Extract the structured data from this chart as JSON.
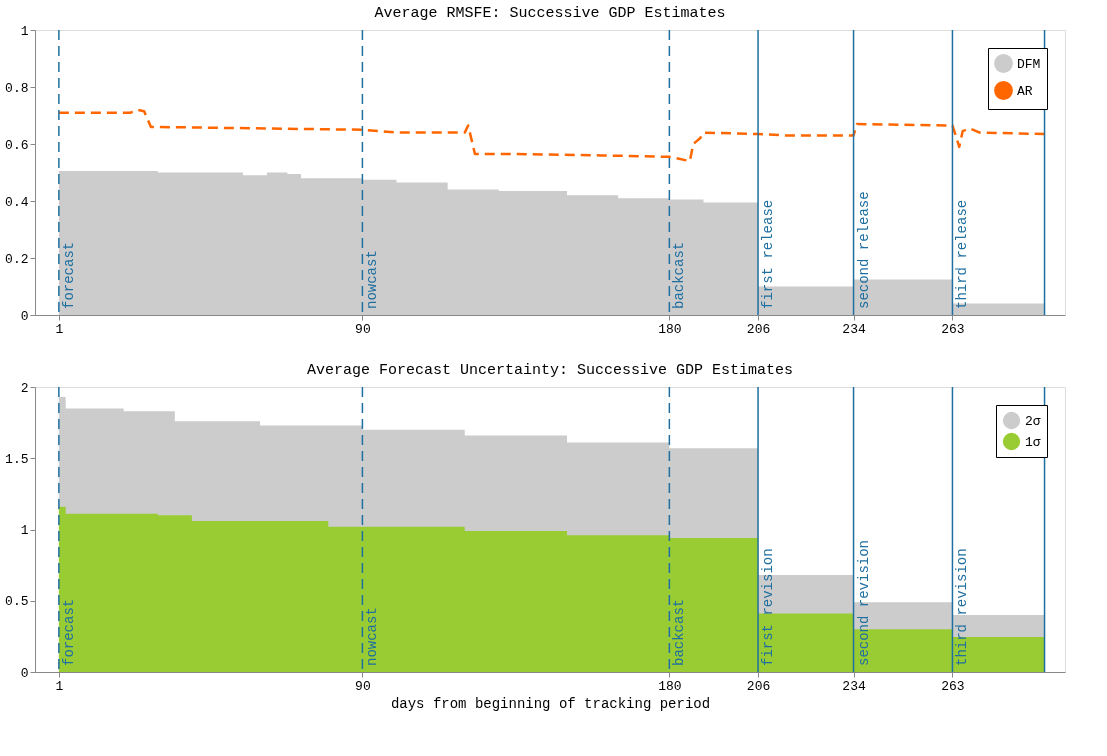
{
  "chart_data": [
    {
      "type": "area",
      "title": "Average RMSFE: Successive GDP Estimates",
      "xlim": [
        -6,
        296
      ],
      "xticks": [
        1,
        90,
        180,
        206,
        234,
        263
      ],
      "ylim": [
        0,
        1
      ],
      "yticks": [
        0,
        0.2,
        0.4,
        0.6,
        0.8,
        1
      ],
      "grid": false,
      "legend": "top right",
      "series": [
        {
          "name": "DFM",
          "color": "#cccccc",
          "x": [
            1,
            30,
            55,
            62,
            68,
            72,
            90,
            100,
            115,
            130,
            150,
            165,
            180,
            190,
            206,
            234,
            263,
            290
          ],
          "values": [
            0.505,
            0.5,
            0.49,
            0.5,
            0.495,
            0.48,
            0.475,
            0.465,
            0.44,
            0.435,
            0.42,
            0.41,
            0.405,
            0.395,
            0.1,
            0.125,
            0.04,
            0.04
          ]
        },
        {
          "name": "AR",
          "type": "line",
          "line_style": "dashed",
          "color": "#ff6600",
          "x": [
            1,
            22,
            24,
            26,
            28,
            90,
            100,
            120,
            121,
            123,
            135,
            160,
            180,
            186,
            187,
            189,
            190,
            206,
            214,
            234,
            235,
            263,
            265,
            266,
            268,
            271,
            290
          ],
          "values": [
            0.71,
            0.71,
            0.72,
            0.715,
            0.66,
            0.65,
            0.64,
            0.64,
            0.665,
            0.565,
            0.565,
            0.56,
            0.555,
            0.54,
            0.6,
            0.62,
            0.64,
            0.635,
            0.63,
            0.63,
            0.67,
            0.665,
            0.59,
            0.645,
            0.655,
            0.64,
            0.635
          ]
        }
      ],
      "ref_lines": [
        {
          "axis": "x",
          "value": 1,
          "label": "forecast",
          "line_style": "dashed",
          "color": "#1f6fa0"
        },
        {
          "axis": "x",
          "value": 90,
          "label": "nowcast",
          "line_style": "dashed",
          "color": "#1f6fa0"
        },
        {
          "axis": "x",
          "value": 180,
          "label": "backcast",
          "line_style": "dashed",
          "color": "#1f6fa0"
        },
        {
          "axis": "x",
          "value": 206,
          "label": "first release",
          "line_style": "solid",
          "color": "#1f6fa0"
        },
        {
          "axis": "x",
          "value": 234,
          "label": "second release",
          "line_style": "solid",
          "color": "#1f6fa0"
        },
        {
          "axis": "x",
          "value": 263,
          "label": "third release",
          "line_style": "solid",
          "color": "#1f6fa0"
        },
        {
          "axis": "x",
          "value": 290,
          "label": null,
          "line_style": "solid",
          "color": "#1f6fa0"
        }
      ]
    },
    {
      "type": "area",
      "title": "Average Forecast Uncertainty: Successive GDP Estimates",
      "xlabel": "days from beginning of tracking period",
      "xlim": [
        -6,
        296
      ],
      "xticks": [
        1,
        90,
        180,
        206,
        234,
        263
      ],
      "ylim": [
        0,
        2
      ],
      "yticks": [
        0,
        0.5,
        1,
        1.5,
        2
      ],
      "grid": false,
      "legend": "top right",
      "series": [
        {
          "name": "2σ",
          "color": "#cccccc",
          "x": [
            1,
            3,
            20,
            35,
            60,
            90,
            120,
            150,
            180,
            206,
            234,
            263,
            290
          ],
          "values": [
            1.93,
            1.85,
            1.83,
            1.76,
            1.73,
            1.7,
            1.66,
            1.61,
            1.57,
            0.68,
            0.49,
            0.4,
            0.4
          ]
        },
        {
          "name": "1σ",
          "color": "#99cc33",
          "x": [
            1,
            3,
            30,
            40,
            80,
            90,
            120,
            150,
            180,
            206,
            234,
            263,
            290
          ],
          "values": [
            1.16,
            1.11,
            1.1,
            1.06,
            1.02,
            1.02,
            0.99,
            0.96,
            0.94,
            0.41,
            0.3,
            0.245,
            0.245
          ]
        }
      ],
      "ref_lines": [
        {
          "axis": "x",
          "value": 1,
          "label": "forecast",
          "line_style": "dashed",
          "color": "#1f6fa0"
        },
        {
          "axis": "x",
          "value": 90,
          "label": "nowcast",
          "line_style": "dashed",
          "color": "#1f6fa0"
        },
        {
          "axis": "x",
          "value": 180,
          "label": "backcast",
          "line_style": "dashed",
          "color": "#1f6fa0"
        },
        {
          "axis": "x",
          "value": 206,
          "label": "first revision",
          "line_style": "solid",
          "color": "#1f6fa0"
        },
        {
          "axis": "x",
          "value": 234,
          "label": "second revision",
          "line_style": "solid",
          "color": "#1f6fa0"
        },
        {
          "axis": "x",
          "value": 263,
          "label": "third revision",
          "line_style": "solid",
          "color": "#1f6fa0"
        },
        {
          "axis": "x",
          "value": 290,
          "label": null,
          "line_style": "solid",
          "color": "#1f6fa0"
        }
      ]
    }
  ]
}
